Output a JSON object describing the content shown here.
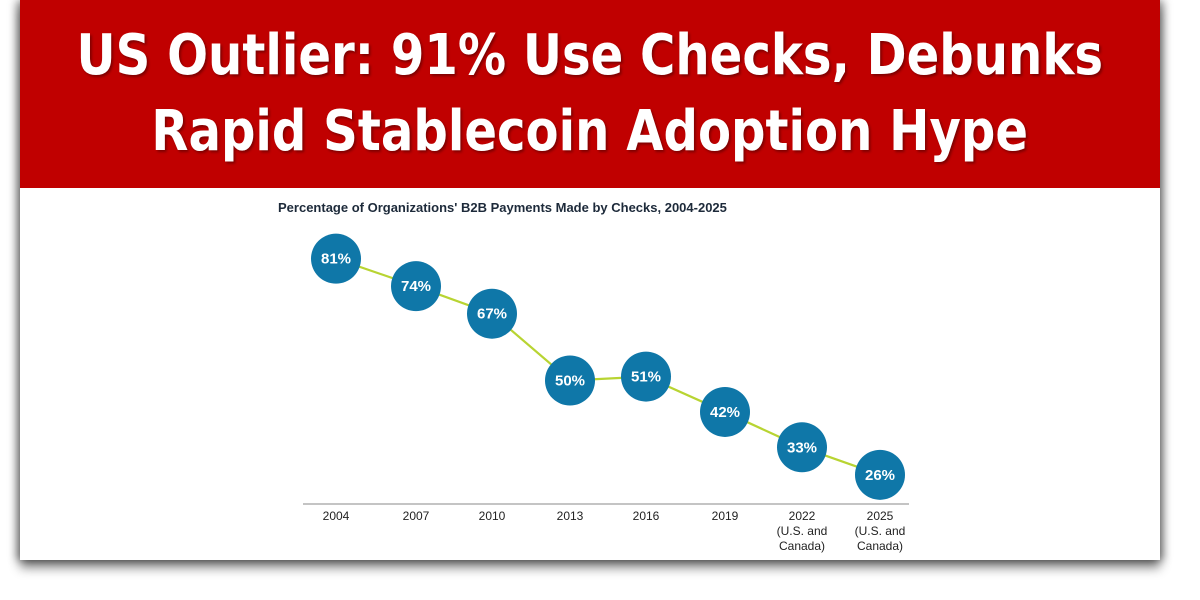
{
  "header": {
    "line1": "US Outlier: 91% Use Checks, Debunks",
    "line2": "Rapid Stablecoin Adoption Hype"
  },
  "colors": {
    "banner": "#c00000",
    "marker": "#0f77a8",
    "line": "#b8d432",
    "axis": "#8a8a8a"
  },
  "chart_data": {
    "type": "line",
    "title": "Percentage of Organizations' B2B Payments Made by Checks, 2004-2025",
    "xlabel": "",
    "ylabel": "",
    "ylim": [
      0,
      100
    ],
    "grid": false,
    "categories": [
      [
        "2004"
      ],
      [
        "2007"
      ],
      [
        "2010"
      ],
      [
        "2013"
      ],
      [
        "2016"
      ],
      [
        "2019"
      ],
      [
        "2022",
        "(U.S. and",
        "Canada)"
      ],
      [
        "2025",
        "(U.S. and",
        "Canada)"
      ]
    ],
    "values": [
      81,
      74,
      67,
      50,
      51,
      42,
      33,
      26
    ],
    "labels": [
      "81%",
      "74%",
      "67%",
      "50%",
      "51%",
      "42%",
      "33%",
      "26%"
    ]
  }
}
